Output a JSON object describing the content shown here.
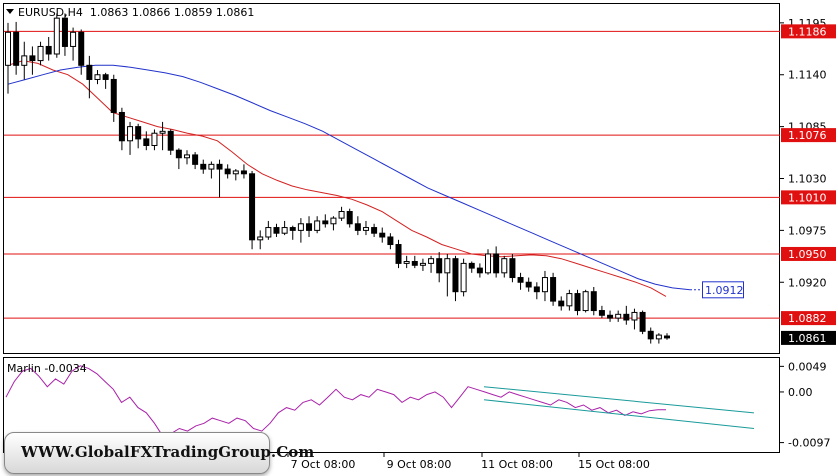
{
  "symbol_header": "EURUSD,H4  1.0863 1.0866 1.0859 1.0861",
  "indicator_header": "Marlin -0.0034",
  "watermark": "WWW.GlobalFXTradingGroup.Com",
  "colors": {
    "ma_fast": "#d32222",
    "ma_slow": "#2233cc",
    "level": "#e01010",
    "oscillator": "#aa22aa",
    "channel": "#1a9a9a",
    "candle": "#000000"
  },
  "chart_data": {
    "type": "candlestick",
    "price_axis_ticks": [
      "1.1195",
      "1.1140",
      "1.1085",
      "1.1030",
      "1.0975",
      "1.0920"
    ],
    "price_axis_values": [
      1.1195,
      1.114,
      1.1085,
      1.103,
      1.0975,
      1.092
    ],
    "ylim": [
      1.0845,
      1.1215
    ],
    "time_axis_labels": [
      "7 Oct 08:00",
      "9 Oct 08:00",
      "11 Oct 08:00",
      "15 Oct 08:00"
    ],
    "horizontal_levels": [
      {
        "label": "1.1186",
        "value": 1.1186
      },
      {
        "label": "1.1076",
        "value": 1.1076
      },
      {
        "label": "1.1010",
        "value": 1.101
      },
      {
        "label": "1.0950",
        "value": 1.095
      },
      {
        "label": "1.0882",
        "value": 1.0882
      }
    ],
    "current_price": {
      "label": "1.0861",
      "value": 1.0861
    },
    "ma_slow_label": {
      "label": "1.0912",
      "value": 1.0912
    },
    "candles": [
      [
        1.115,
        1.1195,
        1.112,
        1.1185
      ],
      [
        1.1185,
        1.1196,
        1.114,
        1.115
      ],
      [
        1.115,
        1.1175,
        1.1135,
        1.116
      ],
      [
        1.116,
        1.117,
        1.114,
        1.1155
      ],
      [
        1.1155,
        1.1175,
        1.115,
        1.117
      ],
      [
        1.117,
        1.118,
        1.1155,
        1.1162
      ],
      [
        1.1162,
        1.1205,
        1.1158,
        1.12
      ],
      [
        1.12,
        1.1205,
        1.116,
        1.117
      ],
      [
        1.117,
        1.119,
        1.1155,
        1.1185
      ],
      [
        1.1185,
        1.1188,
        1.114,
        1.115
      ],
      [
        1.115,
        1.116,
        1.1115,
        1.1135
      ],
      [
        1.1135,
        1.1145,
        1.113,
        1.114
      ],
      [
        1.114,
        1.1142,
        1.1125,
        1.1135
      ],
      [
        1.1135,
        1.114,
        1.109,
        1.11
      ],
      [
        1.11,
        1.1105,
        1.106,
        1.107
      ],
      [
        1.107,
        1.109,
        1.1055,
        1.1085
      ],
      [
        1.1085,
        1.1088,
        1.1062,
        1.1072
      ],
      [
        1.1072,
        1.108,
        1.106,
        1.1065
      ],
      [
        1.1065,
        1.1082,
        1.106,
        1.1078
      ],
      [
        1.1078,
        1.109,
        1.106,
        1.108
      ],
      [
        1.108,
        1.1082,
        1.1055,
        1.106
      ],
      [
        1.106,
        1.1062,
        1.104,
        1.1052
      ],
      [
        1.1052,
        1.106,
        1.1045,
        1.1055
      ],
      [
        1.1055,
        1.1058,
        1.104,
        1.1045
      ],
      [
        1.1045,
        1.105,
        1.1035,
        1.104
      ],
      [
        1.104,
        1.1048,
        1.103,
        1.1045
      ],
      [
        1.1045,
        1.105,
        1.101,
        1.104
      ],
      [
        1.104,
        1.1045,
        1.103,
        1.1035
      ],
      [
        1.1035,
        1.104,
        1.1028,
        1.1038
      ],
      [
        1.1038,
        1.1045,
        1.103,
        1.1035
      ],
      [
        1.1035,
        1.1038,
        1.0955,
        1.0965
      ],
      [
        1.0965,
        1.0975,
        1.0955,
        1.0968
      ],
      [
        1.0968,
        1.0985,
        1.0965,
        1.0978
      ],
      [
        1.0978,
        1.0982,
        1.0968,
        1.0972
      ],
      [
        1.0972,
        1.0985,
        1.097,
        1.0978
      ],
      [
        1.0978,
        1.098,
        1.0965,
        1.0975
      ],
      [
        1.0975,
        1.0988,
        1.0962,
        1.0982
      ],
      [
        1.0982,
        1.099,
        1.0968,
        1.0975
      ],
      [
        1.0975,
        1.099,
        1.0972,
        1.0985
      ],
      [
        1.0985,
        1.0992,
        1.0978,
        1.0982
      ],
      [
        1.0982,
        1.099,
        1.0975,
        1.0988
      ],
      [
        1.0988,
        1.1,
        1.0985,
        1.0995
      ],
      [
        1.0995,
        1.0998,
        1.0978,
        1.0982
      ],
      [
        1.0982,
        1.099,
        1.097,
        1.0975
      ],
      [
        1.0975,
        1.0985,
        1.097,
        1.0978
      ],
      [
        1.0978,
        1.0982,
        1.0968,
        1.0972
      ],
      [
        1.0972,
        1.0978,
        1.0962,
        1.0968
      ],
      [
        1.0968,
        1.0972,
        1.0955,
        1.096
      ],
      [
        1.096,
        1.0965,
        1.0935,
        1.094
      ],
      [
        1.094,
        1.0948,
        1.0935,
        1.0942
      ],
      [
        1.0942,
        1.0948,
        1.0935,
        1.0938
      ],
      [
        1.0938,
        1.0945,
        1.0932,
        1.094
      ],
      [
        1.094,
        1.0948,
        1.093,
        1.0945
      ],
      [
        1.0945,
        1.0952,
        1.092,
        1.093
      ],
      [
        1.093,
        1.095,
        1.0905,
        1.0945
      ],
      [
        1.0945,
        1.0948,
        1.09,
        1.091
      ],
      [
        1.091,
        1.0945,
        1.0905,
        1.094
      ],
      [
        1.094,
        1.0942,
        1.093,
        1.0935
      ],
      [
        1.0935,
        1.094,
        1.0925,
        1.093
      ],
      [
        1.093,
        1.0955,
        1.0928,
        1.095
      ],
      [
        1.095,
        1.0958,
        1.0925,
        1.093
      ],
      [
        1.093,
        1.0948,
        1.0925,
        1.0945
      ],
      [
        1.0945,
        1.095,
        1.092,
        1.0925
      ],
      [
        1.0925,
        1.093,
        1.0912,
        1.092
      ],
      [
        1.092,
        1.0925,
        1.091,
        1.0915
      ],
      [
        1.0915,
        1.092,
        1.0902,
        1.091
      ],
      [
        1.091,
        1.0932,
        1.09,
        1.0925
      ],
      [
        1.0925,
        1.093,
        1.0895,
        1.09
      ],
      [
        1.09,
        1.0905,
        1.089,
        1.0895
      ],
      [
        1.0895,
        1.0912,
        1.089,
        1.0908
      ],
      [
        1.0908,
        1.0912,
        1.0885,
        1.089
      ],
      [
        1.089,
        1.0912,
        1.0888,
        1.091
      ],
      [
        1.091,
        1.0915,
        1.0885,
        1.089
      ],
      [
        1.089,
        1.0895,
        1.0882,
        1.0885
      ],
      [
        1.0885,
        1.089,
        1.0878,
        1.0882
      ],
      [
        1.0882,
        1.089,
        1.0878,
        1.0886
      ],
      [
        1.0886,
        1.0895,
        1.0875,
        1.088
      ],
      [
        1.088,
        1.0892,
        1.087,
        1.0888
      ],
      [
        1.0888,
        1.089,
        1.0865,
        1.0868
      ],
      [
        1.0868,
        1.0872,
        1.0855,
        1.086
      ],
      [
        1.086,
        1.0866,
        1.0855,
        1.0864
      ],
      [
        1.0863,
        1.0866,
        1.0859,
        1.0861
      ]
    ],
    "ma_fast": [
      1.115,
      1.1155,
      1.1152,
      1.1145,
      1.114,
      1.113,
      1.1115,
      1.11,
      1.1095,
      1.109,
      1.1085,
      1.1082,
      1.1078,
      1.1075,
      1.107,
      1.1058,
      1.1045,
      1.1035,
      1.1028,
      1.1022,
      1.1018,
      1.1015,
      1.1012,
      1.1008,
      1.1002,
      1.0995,
      1.0985,
      1.0975,
      1.0968,
      1.096,
      1.0955,
      1.095,
      1.0948,
      1.0947,
      1.0948,
      1.0949,
      1.0948,
      1.0945,
      1.094,
      1.0935,
      1.093,
      1.0925,
      1.092,
      1.0914,
      1.0905
    ],
    "ma_slow": [
      1.113,
      1.1135,
      1.114,
      1.1145,
      1.1148,
      1.115,
      1.115,
      1.1148,
      1.1145,
      1.1142,
      1.1138,
      1.1132,
      1.1125,
      1.1118,
      1.111,
      1.1102,
      1.1095,
      1.1088,
      1.108,
      1.107,
      1.106,
      1.105,
      1.104,
      1.103,
      1.102,
      1.1012,
      1.1004,
      1.0996,
      1.0988,
      1.098,
      1.0972,
      1.0964,
      1.0956,
      1.0948,
      1.094,
      1.0932,
      1.0924,
      1.0918,
      1.0914,
      1.0912
    ],
    "indicator": {
      "axis_ticks": [
        "0.0049",
        "0.00",
        "-0.0097"
      ],
      "axis_values": [
        0.0049,
        0.0,
        -0.0097
      ],
      "ylim": [
        -0.0115,
        0.0065
      ],
      "values": [
        -0.001,
        0.002,
        0.004,
        0.0045,
        0.003,
        0.001,
        0.0025,
        0.0015,
        0.004,
        0.005,
        0.0045,
        0.0035,
        0.002,
        0.0005,
        -0.002,
        -0.001,
        -0.003,
        -0.004,
        -0.006,
        -0.0085,
        -0.008,
        -0.007,
        -0.0075,
        -0.0065,
        -0.006,
        -0.005,
        -0.0055,
        -0.006,
        -0.005,
        -0.0055,
        -0.007,
        -0.0075,
        -0.006,
        -0.004,
        -0.003,
        -0.0035,
        -0.002,
        -0.0015,
        -0.0025,
        -0.001,
        0.0005,
        -0.001,
        -0.0015,
        -0.0005,
        -0.001,
        0.0005,
        0.0,
        -0.0005,
        -0.002,
        -0.001,
        -0.0015,
        -0.0005,
        0.0,
        -0.001,
        -0.003,
        -0.001,
        0.001,
        0.0005,
        0.0,
        -0.0005,
        -0.001,
        0.0,
        -0.0005,
        -0.001,
        -0.0015,
        -0.002,
        -0.0025,
        -0.0015,
        -0.002,
        -0.003,
        -0.0025,
        -0.0035,
        -0.003,
        -0.004,
        -0.0035,
        -0.0045,
        -0.0038,
        -0.0042,
        -0.0036,
        -0.0034,
        -0.0034
      ],
      "channel_upper": [
        [
          0.001,
          -0.004
        ]
      ],
      "channel_lower": [
        [
          -0.0015,
          -0.007
        ]
      ]
    }
  }
}
